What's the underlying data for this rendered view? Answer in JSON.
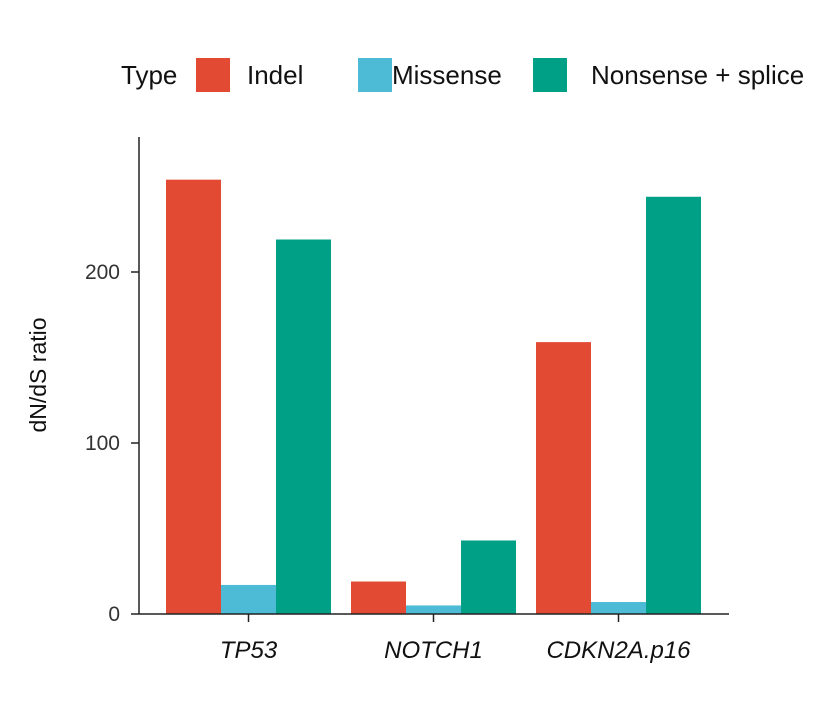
{
  "chart_data": {
    "type": "bar",
    "title": "",
    "xlabel": "",
    "ylabel": "dN/dS ratio",
    "ylim": [
      0,
      280
    ],
    "yticks": [
      0,
      100,
      200
    ],
    "grid": false,
    "legend": {
      "title": "Type",
      "placement": "top"
    },
    "categories": [
      "TP53",
      "NOTCH1",
      "CDKN2A.p16"
    ],
    "series": [
      {
        "name": "Indel",
        "color": "#e34a33",
        "values": [
          254,
          19,
          159
        ]
      },
      {
        "name": "Missense",
        "color": "#4dbbd5",
        "values": [
          17,
          5,
          7
        ]
      },
      {
        "name": "Nonsense + splice",
        "color": "#00a087",
        "values": [
          219,
          43,
          244
        ]
      }
    ]
  }
}
